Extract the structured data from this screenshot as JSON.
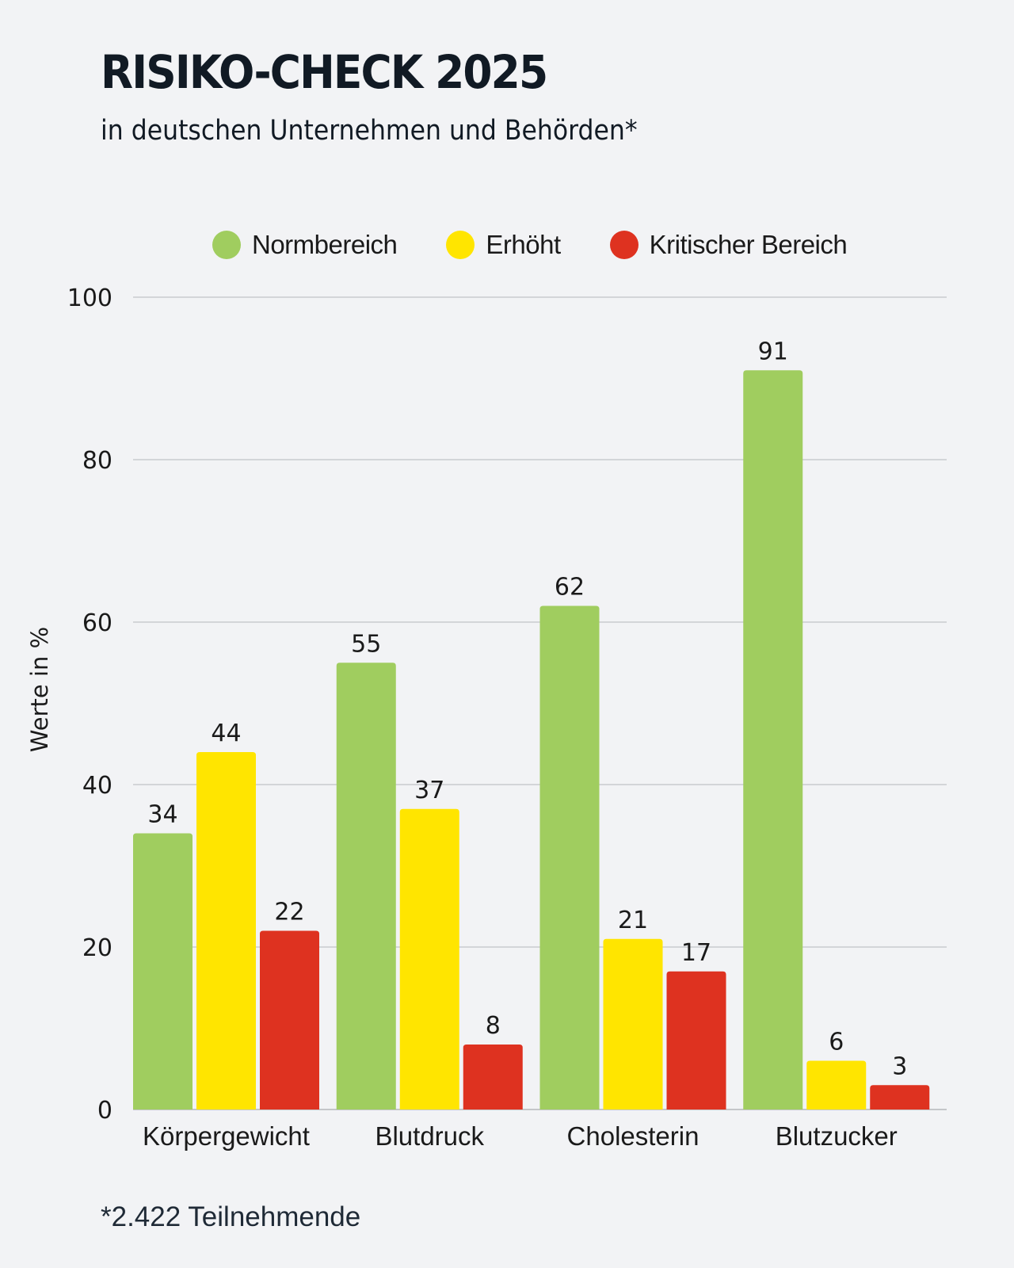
{
  "header": {
    "title": "RISIKO-CHECK 2025",
    "subtitle": "in deutschen Unternehmen und Behörden*"
  },
  "footnote": "*2.422 Teilnehmende",
  "chart_data": {
    "type": "bar",
    "title": "RISIKO-CHECK 2025",
    "subtitle": "in deutschen Unternehmen und Behörden*",
    "xlabel": "",
    "ylabel": "Werte in %",
    "ylim": [
      0,
      100
    ],
    "yticks": [
      0,
      20,
      40,
      60,
      80,
      100
    ],
    "grid": true,
    "legend_position": "top-center",
    "categories": [
      "Körpergewicht",
      "Blutdruck",
      "Cholesterin",
      "Blutzucker"
    ],
    "series": [
      {
        "name": "Normbereich",
        "color": "#a0cd5f",
        "values": [
          34,
          55,
          62,
          91
        ]
      },
      {
        "name": "Erhöht",
        "color": "#ffe500",
        "values": [
          44,
          37,
          21,
          6
        ]
      },
      {
        "name": "Kritischer Bereich",
        "color": "#de3220",
        "values": [
          22,
          8,
          17,
          3
        ]
      }
    ],
    "data_labels": true,
    "annotation": "*2.422 Teilnehmende"
  }
}
